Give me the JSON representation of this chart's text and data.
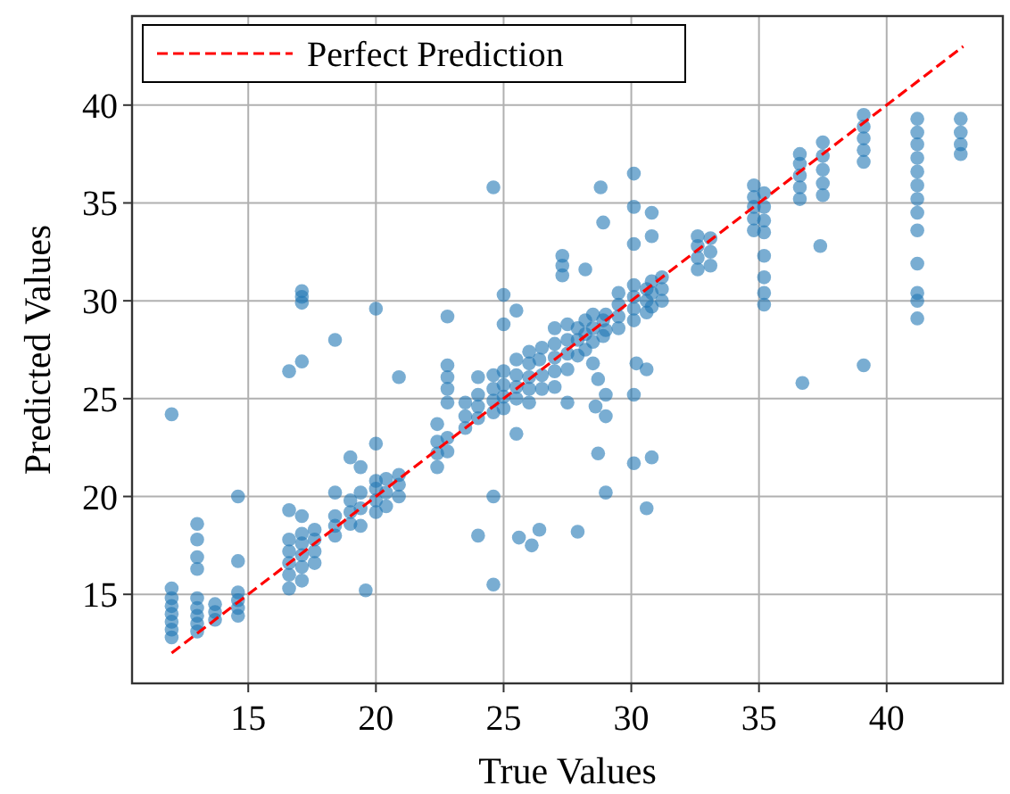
{
  "chart_data": {
    "type": "scatter",
    "xlabel": "True Values",
    "ylabel": "Predicted Values",
    "xlim": [
      10.45,
      44.55
    ],
    "ylim": [
      10.45,
      44.55
    ],
    "xticks": [
      15,
      20,
      25,
      30,
      35,
      40
    ],
    "yticks": [
      15,
      20,
      25,
      30,
      35,
      40
    ],
    "grid": true,
    "legend": "top left",
    "series": [
      {
        "color": "#1f77b4",
        "marker": "circle",
        "x": [
          12,
          12,
          12,
          12,
          12,
          12,
          12,
          12,
          13,
          13,
          13,
          13,
          13,
          13,
          13,
          13,
          13,
          13.7,
          13.7,
          13.7,
          14.6,
          14.6,
          14.6,
          14.6,
          14.6,
          14.6,
          16.6,
          16.6,
          16.6,
          16.6,
          16.6,
          16.6,
          16.6,
          17.1,
          17.1,
          17.1,
          17.1,
          17.1,
          17.1,
          17.1,
          17.1,
          17.1,
          17.1,
          17.6,
          17.6,
          17.6,
          17.6,
          18.4,
          18.4,
          18.4,
          18.4,
          18.4,
          19,
          19,
          19,
          19,
          19.4,
          19.4,
          19.4,
          19.4,
          19.6,
          20,
          20,
          20,
          20,
          20,
          20,
          20.4,
          20.4,
          20.4,
          20.9,
          20.9,
          20.9,
          20.9,
          22.4,
          22.4,
          22.4,
          22.4,
          22.8,
          22.8,
          22.8,
          22.8,
          22.8,
          22.8,
          22.8,
          23.5,
          23.5,
          23.5,
          24,
          24,
          24,
          24,
          24,
          24.6,
          24.6,
          24.6,
          24.6,
          24.6,
          24.6,
          24.6,
          25,
          25,
          25,
          25,
          25,
          25,
          25.5,
          25.5,
          25.5,
          25.5,
          25.5,
          25.5,
          25.6,
          26,
          26,
          26,
          26,
          26,
          26.1,
          26.4,
          26.4,
          26.5,
          26.5,
          26.5,
          27,
          27,
          27,
          27,
          27,
          27.3,
          27.3,
          27.3,
          27.5,
          27.5,
          27.5,
          27.5,
          27.5,
          27.9,
          27.9,
          27.9,
          27.9,
          28.2,
          28.2,
          28.2,
          28.2,
          28.5,
          28.5,
          28.5,
          28.5,
          28.6,
          28.7,
          28.7,
          28.8,
          28.9,
          28.9,
          28.9,
          29,
          29,
          29,
          29,
          29,
          29.5,
          29.5,
          29.5,
          29.5,
          30.1,
          30.1,
          30.1,
          30.1,
          30.1,
          30.1,
          30.1,
          30.1,
          30.1,
          30.2,
          30.6,
          30.6,
          30.6,
          30.6,
          30.6,
          30.8,
          30.8,
          30.8,
          30.8,
          30.8,
          30.8,
          31.2,
          31.2,
          31.2,
          32.6,
          32.6,
          32.6,
          32.6,
          33.1,
          33.1,
          33.1,
          34.8,
          34.8,
          34.8,
          34.8,
          34.8,
          35.2,
          35.2,
          35.2,
          35.2,
          35.2,
          35.2,
          35.2,
          35.2,
          36.6,
          36.6,
          36.6,
          36.6,
          36.6,
          36.7,
          37.4,
          37.5,
          37.5,
          37.5,
          37.5,
          37.5,
          39.1,
          39.1,
          39.1,
          39.1,
          39.1,
          39.1,
          41.2,
          41.2,
          41.2,
          41.2,
          41.2,
          41.2,
          41.2,
          41.2,
          41.2,
          41.2,
          41.2,
          41.2,
          41.2,
          42.9,
          42.9,
          42.9,
          42.9
        ],
        "values": [
          12.8,
          13.2,
          13.6,
          14.0,
          14.4,
          14.8,
          15.3,
          24.2,
          13.1,
          13.5,
          13.9,
          14.3,
          14.8,
          16.3,
          16.9,
          17.8,
          18.6,
          13.7,
          14.1,
          14.5,
          13.9,
          14.3,
          14.7,
          15.1,
          16.7,
          20.0,
          15.3,
          16.0,
          16.6,
          17.2,
          17.8,
          19.3,
          26.4,
          15.7,
          16.4,
          17.0,
          17.6,
          18.1,
          19.0,
          26.9,
          29.9,
          30.2,
          30.5,
          16.6,
          17.2,
          17.8,
          18.3,
          18.0,
          18.5,
          19.0,
          20.2,
          28.0,
          18.6,
          19.2,
          19.8,
          22.0,
          18.5,
          19.4,
          20.2,
          21.5,
          15.2,
          19.2,
          19.8,
          20.4,
          20.8,
          22.7,
          29.6,
          19.5,
          20.2,
          20.9,
          20.0,
          20.6,
          21.1,
          26.1,
          21.5,
          22.2,
          22.8,
          23.7,
          22.3,
          23.0,
          24.8,
          25.5,
          26.1,
          26.7,
          29.2,
          23.5,
          24.1,
          24.8,
          18.0,
          24.0,
          24.6,
          25.2,
          26.1,
          15.5,
          20.0,
          24.3,
          24.9,
          25.5,
          26.2,
          35.8,
          24.5,
          25.1,
          25.7,
          26.4,
          28.8,
          30.3,
          23.2,
          25.0,
          25.6,
          26.2,
          27.0,
          29.5,
          17.9,
          24.8,
          25.5,
          26.1,
          26.8,
          27.4,
          17.5,
          18.3,
          27.0,
          25.5,
          26.2,
          27.6,
          25.6,
          26.4,
          27.1,
          27.8,
          28.6,
          31.3,
          31.8,
          32.3,
          26.5,
          27.3,
          28.0,
          28.8,
          24.8,
          18.2,
          27.2,
          28.0,
          28.6,
          27.5,
          28.3,
          29.0,
          31.6,
          26.8,
          27.9,
          28.6,
          29.3,
          24.6,
          22.2,
          26.0,
          35.8,
          34.0,
          28.2,
          29.0,
          20.2,
          24.1,
          25.2,
          28.5,
          29.3,
          28.6,
          29.2,
          29.8,
          30.4,
          21.7,
          25.2,
          29.0,
          29.6,
          30.2,
          30.8,
          32.9,
          34.8,
          36.5,
          26.8,
          19.4,
          26.5,
          29.4,
          30.0,
          30.6,
          22.0,
          29.7,
          30.4,
          31.0,
          33.3,
          34.5,
          30.0,
          30.6,
          31.2,
          31.6,
          32.2,
          32.8,
          33.3,
          31.8,
          32.5,
          33.2,
          33.6,
          34.2,
          34.8,
          35.3,
          35.9,
          29.8,
          30.4,
          31.2,
          32.3,
          33.5,
          34.1,
          34.8,
          35.5,
          35.2,
          35.8,
          36.4,
          37.0,
          37.5,
          25.8,
          32.8,
          35.4,
          36.0,
          36.7,
          37.4,
          38.1,
          26.7,
          37.1,
          37.7,
          38.3,
          38.9,
          39.5,
          29.1,
          30.0,
          30.4,
          31.9,
          33.6,
          34.5,
          35.2,
          35.9,
          36.6,
          37.3,
          38.0,
          38.6,
          39.3,
          37.5,
          38.0,
          38.6,
          39.3
        ]
      },
      {
        "type": "line",
        "name": "Perfect Prediction",
        "color": "#ff0000",
        "line_style": "dashed",
        "x": [
          12,
          43
        ],
        "values": [
          12,
          43
        ]
      }
    ]
  }
}
